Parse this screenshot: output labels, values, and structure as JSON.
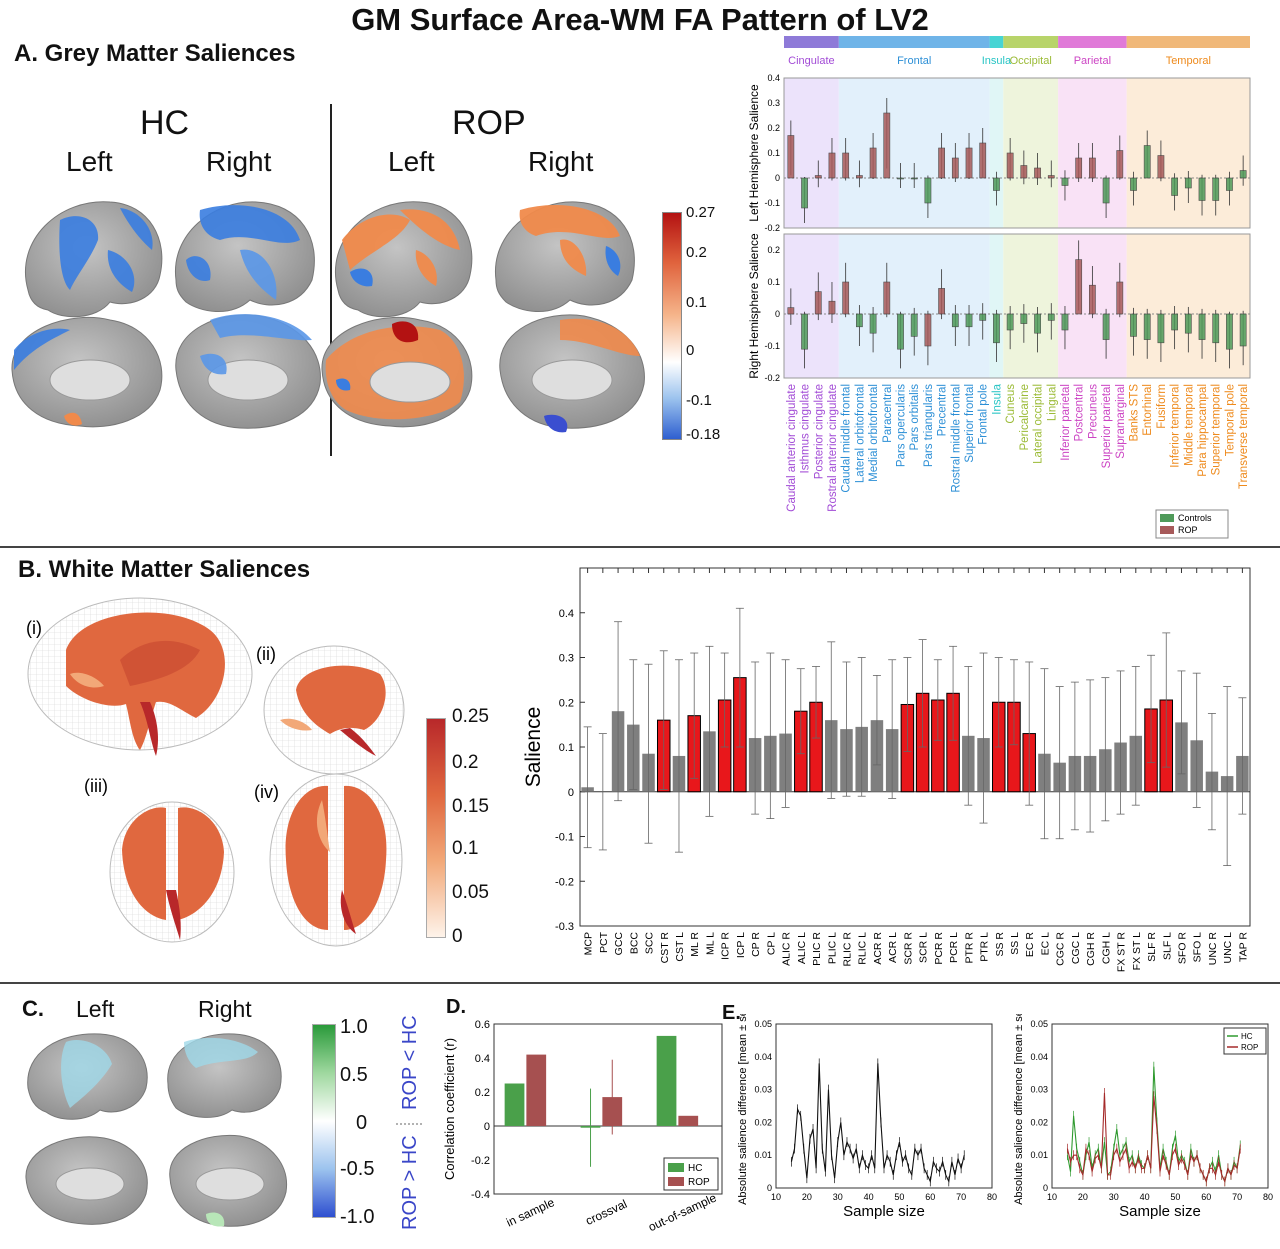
{
  "figure": {
    "title": "GM Surface Area-WM FA Pattern of LV2",
    "section_a": "A. Grey Matter Saliences",
    "section_b": "B. White Matter Saliences",
    "section_c": "C.",
    "section_d": "D.",
    "section_e": "E."
  },
  "panel_a": {
    "groups": [
      "HC",
      "ROP"
    ],
    "hemis": [
      "Left",
      "Right",
      "Left",
      "Right"
    ],
    "colorbar_ticks": [
      "0.27",
      "0.2",
      "0.1",
      "0",
      "-0.1",
      "-0.18"
    ],
    "colors": {
      "negative": "#3a7de0",
      "positive": "#f08a4b",
      "max": "#b31212",
      "cortex": "#a8a8a8"
    }
  },
  "chart_data": [
    {
      "id": "gm_saliences",
      "type": "bar",
      "lobes": [
        {
          "name": "Cingulate",
          "color": "#8e7ad8",
          "bg": "#ece3fb",
          "label_color": "#a24bd6",
          "count": 4
        },
        {
          "name": "Frontal",
          "color": "#6fb4e8",
          "bg": "#e2f0fb",
          "label_color": "#2c8fd6",
          "count": 11
        },
        {
          "name": "Insula",
          "color": "#46d4d4",
          "bg": "#e0f6f6",
          "label_color": "#27c4c4",
          "count": 1
        },
        {
          "name": "Occipital",
          "color": "#b8d46a",
          "bg": "#eef4dc",
          "label_color": "#9bbb36",
          "count": 4
        },
        {
          "name": "Parietal",
          "color": "#e07ad8",
          "bg": "#f9e2f6",
          "label_color": "#cc45c4",
          "count": 5
        },
        {
          "name": "Temporal",
          "color": "#f0b879",
          "bg": "#fcecd9",
          "label_color": "#ee8a1c",
          "count": 9
        }
      ],
      "categories": [
        "Caudal anterior cingulate",
        "Isthmus cingulate",
        "Posterior cingulate",
        "Rostral anterior cingulate",
        "Caudal middle frontal",
        "Lateral orbitofrontal",
        "Medial orbitofrontal",
        "Paracentral",
        "Pars opercularis",
        "Pars orbitalis",
        "Pars triangularis",
        "Precentral",
        "Rostral middle frontal",
        "Superior frontal",
        "Frontal pole",
        "Insula",
        "Cuneus",
        "Pericalcarine",
        "Lateral occipital",
        "Lingual",
        "Inferior parietal",
        "Postcentral",
        "Precuneus",
        "Superior parietal",
        "Supramarginal",
        "Banks STS",
        "Entorhinal",
        "Fusiform",
        "Inferior temporal",
        "Middle temporal",
        "Para hippocampal",
        "Superior temporal",
        "Temporal pole",
        "Transverse temporal"
      ],
      "ylabel_top": "Left Hemisphere Salience",
      "ylabel_bottom": "Right Hemisphere Salience",
      "ylim_top": [
        -0.2,
        0.4
      ],
      "ylim_bottom": [
        -0.2,
        0.25
      ],
      "yticks_top": [
        "0.4",
        "0.3",
        "0.2",
        "0.1",
        "0",
        "-0.1",
        "-0.2"
      ],
      "yticks_bottom": [
        "0.2",
        "0.1",
        "0",
        "-0.1",
        "-0.2"
      ],
      "series_left": [
        0.17,
        -0.12,
        0.01,
        0.1,
        0.1,
        0.01,
        0.12,
        0.26,
        0.0,
        0.0,
        -0.1,
        0.12,
        0.08,
        0.12,
        0.14,
        -0.05,
        0.1,
        0.05,
        0.04,
        0.01,
        -0.03,
        0.08,
        0.08,
        -0.1,
        0.11,
        -0.05,
        0.13,
        0.09,
        -0.07,
        -0.04,
        -0.09,
        -0.09,
        -0.05,
        0.03
      ],
      "series_left_groups": [
        "ROP",
        "Controls",
        "ROP",
        "ROP",
        "ROP",
        "ROP",
        "ROP",
        "ROP",
        "Controls",
        "Controls",
        "Controls",
        "ROP",
        "ROP",
        "ROP",
        "ROP",
        "Controls",
        "ROP",
        "ROP",
        "ROP",
        "ROP",
        "Controls",
        "ROP",
        "ROP",
        "Controls",
        "ROP",
        "Controls",
        "Controls",
        "ROP",
        "Controls",
        "Controls",
        "Controls",
        "Controls",
        "Controls",
        "Controls"
      ],
      "series_right": [
        0.02,
        -0.11,
        0.07,
        0.04,
        0.1,
        -0.04,
        -0.06,
        0.1,
        -0.11,
        -0.07,
        -0.1,
        0.08,
        -0.04,
        -0.04,
        -0.02,
        -0.09,
        -0.05,
        -0.03,
        -0.06,
        -0.02,
        -0.05,
        0.17,
        0.09,
        -0.08,
        0.1,
        -0.07,
        -0.08,
        -0.09,
        -0.05,
        -0.06,
        -0.08,
        -0.09,
        -0.11,
        -0.1
      ],
      "series_right_groups": [
        "ROP",
        "Controls",
        "ROP",
        "ROP",
        "ROP",
        "Controls",
        "Controls",
        "ROP",
        "Controls",
        "Controls",
        "ROP",
        "ROP",
        "Controls",
        "Controls",
        "Controls",
        "Controls",
        "Controls",
        "Controls",
        "Controls",
        "Controls",
        "Controls",
        "ROP",
        "ROP",
        "Controls",
        "ROP",
        "Controls",
        "Controls",
        "Controls",
        "Controls",
        "Controls",
        "Controls",
        "Controls",
        "Controls",
        "Controls"
      ],
      "legend": [
        "Controls",
        "ROP"
      ],
      "legend_colors": [
        "#4f9a5a",
        "#a75a5a"
      ],
      "legend_position": "bottom-right"
    },
    {
      "id": "wm_saliences",
      "type": "bar",
      "categories": [
        "MCP",
        "PCT",
        "GCC",
        "BCC",
        "SCC",
        "CST R",
        "CST L",
        "ML R",
        "ML L",
        "ICP R",
        "ICP L",
        "CP R",
        "CP L",
        "ALIC R",
        "ALIC L",
        "PLIC R",
        "PLIC L",
        "RLIC R",
        "RLIC L",
        "ACR R",
        "ACR L",
        "SCR R",
        "SCR L",
        "PCR R",
        "PCR L",
        "PTR R",
        "PTR L",
        "SS R",
        "SS L",
        "EC R",
        "EC L",
        "CGC R",
        "CGC L",
        "CGH R",
        "CGH L",
        "FX ST R",
        "FX ST L",
        "SLF R",
        "SLF L",
        "SFO R",
        "SFO L",
        "UNC R",
        "UNC L",
        "TAP R"
      ],
      "values": [
        0.01,
        0.0,
        0.18,
        0.15,
        0.085,
        0.16,
        0.08,
        0.17,
        0.135,
        0.205,
        0.255,
        0.12,
        0.125,
        0.13,
        0.18,
        0.2,
        0.16,
        0.14,
        0.145,
        0.16,
        0.14,
        0.195,
        0.22,
        0.205,
        0.22,
        0.125,
        0.12,
        0.2,
        0.2,
        0.13,
        0.085,
        0.065,
        0.08,
        0.08,
        0.095,
        0.11,
        0.125,
        0.185,
        0.205,
        0.155,
        0.115,
        0.045,
        0.035,
        0.08
      ],
      "errors": [
        0.135,
        0.13,
        0.2,
        0.145,
        0.2,
        0.155,
        0.215,
        0.14,
        0.19,
        0.105,
        0.155,
        0.17,
        0.185,
        0.165,
        0.095,
        0.08,
        0.175,
        0.15,
        0.155,
        0.1,
        0.155,
        0.105,
        0.12,
        0.09,
        0.105,
        0.155,
        0.19,
        0.1,
        0.095,
        0.16,
        0.19,
        0.17,
        0.165,
        0.17,
        0.16,
        0.16,
        0.155,
        0.12,
        0.15,
        0.115,
        0.15,
        0.13,
        0.2,
        0.13
      ],
      "significant": [
        false,
        false,
        false,
        false,
        false,
        true,
        false,
        true,
        false,
        true,
        true,
        false,
        false,
        false,
        true,
        true,
        false,
        false,
        false,
        false,
        false,
        true,
        true,
        true,
        true,
        false,
        false,
        true,
        true,
        true,
        false,
        false,
        false,
        false,
        false,
        false,
        false,
        true,
        true,
        false,
        false,
        false,
        false,
        false
      ],
      "colors": {
        "significant": "#e8171b",
        "other": "#7f7f7f"
      },
      "ylabel": "Salience",
      "ylim": [
        -0.3,
        0.5
      ],
      "yticks": [
        "0.4",
        "0.3",
        "0.2",
        "0.1",
        "0",
        "-0.1",
        "-0.2",
        "-0.3"
      ]
    },
    {
      "id": "correlation",
      "type": "bar",
      "categories": [
        "in sample",
        "crossval",
        "out-of-sample"
      ],
      "series": [
        {
          "name": "HC",
          "values": [
            0.25,
            -0.01,
            0.53
          ],
          "errors": [
            0.0,
            0.23,
            0.0
          ],
          "color": "#4aa04a"
        },
        {
          "name": "ROP",
          "values": [
            0.42,
            0.17,
            0.06
          ],
          "errors": [
            0.0,
            0.22,
            0.0
          ],
          "color": "#a65050"
        }
      ],
      "ylabel": "Correlation coefficient (r)",
      "ylim": [
        -0.4,
        0.6
      ],
      "yticks": [
        "0.6",
        "0.4",
        "0.2",
        "0",
        "-0.2",
        "-0.4"
      ],
      "legend_position": "bottom-right"
    },
    {
      "id": "salience_diff_all",
      "type": "line",
      "x": [
        15,
        16,
        17,
        18,
        19,
        20,
        21,
        22,
        23,
        24,
        25,
        26,
        27,
        28,
        29,
        30,
        31,
        32,
        33,
        34,
        35,
        36,
        37,
        38,
        39,
        40,
        41,
        42,
        43,
        44,
        45,
        46,
        47,
        48,
        49,
        50,
        51,
        52,
        53,
        54,
        55,
        56,
        57,
        58,
        59,
        60,
        61,
        62,
        63,
        64,
        65,
        66,
        67,
        68,
        69,
        70,
        71
      ],
      "values": [
        0.008,
        0.012,
        0.024,
        0.022,
        0.012,
        0.003,
        0.015,
        0.018,
        0.006,
        0.038,
        0.012,
        0.005,
        0.03,
        0.01,
        0.003,
        0.014,
        0.02,
        0.01,
        0.014,
        0.012,
        0.009,
        0.012,
        0.006,
        0.01,
        0.007,
        0.006,
        0.01,
        0.006,
        0.038,
        0.02,
        0.006,
        0.01,
        0.008,
        0.004,
        0.01,
        0.014,
        0.008,
        0.01,
        0.006,
        0.004,
        0.012,
        0.01,
        0.012,
        0.006,
        0.004,
        0.002,
        0.008,
        0.006,
        0.005,
        0.008,
        0.004,
        0.002,
        0.008,
        0.004,
        0.009,
        0.006,
        0.01
      ],
      "xlabel": "Sample size",
      "ylabel": "Absolute salience difference [mean ± se]",
      "xlim": [
        10,
        80
      ],
      "ylim": [
        0,
        0.05
      ],
      "xticks": [
        "10",
        "20",
        "30",
        "40",
        "50",
        "60",
        "70",
        "80"
      ],
      "yticks": [
        "0.05",
        "0.04",
        "0.03",
        "0.02",
        "0.01",
        "0"
      ]
    },
    {
      "id": "salience_diff_groups",
      "type": "line",
      "x": [
        15,
        16,
        17,
        18,
        19,
        20,
        21,
        22,
        23,
        24,
        25,
        26,
        27,
        28,
        29,
        30,
        31,
        32,
        33,
        34,
        35,
        36,
        37,
        38,
        39,
        40,
        41,
        42,
        43,
        44,
        45,
        46,
        47,
        48,
        49,
        50,
        51,
        52,
        53,
        54,
        55,
        56,
        57,
        58,
        59,
        60,
        61,
        62,
        63,
        64,
        65,
        66,
        67,
        68,
        69,
        70,
        71
      ],
      "series": [
        {
          "name": "HC",
          "color": "#2f9a2f",
          "values": [
            0.01,
            0.005,
            0.022,
            0.012,
            0.008,
            0.004,
            0.01,
            0.014,
            0.006,
            0.01,
            0.012,
            0.006,
            0.014,
            0.004,
            0.005,
            0.012,
            0.018,
            0.01,
            0.012,
            0.014,
            0.008,
            0.01,
            0.006,
            0.01,
            0.007,
            0.006,
            0.01,
            0.006,
            0.037,
            0.02,
            0.006,
            0.012,
            0.008,
            0.004,
            0.012,
            0.016,
            0.008,
            0.01,
            0.008,
            0.004,
            0.012,
            0.008,
            0.01,
            0.006,
            0.004,
            0.002,
            0.006,
            0.008,
            0.005,
            0.01,
            0.004,
            0.002,
            0.006,
            0.004,
            0.008,
            0.006,
            0.013
          ]
        },
        {
          "name": "ROP",
          "color": "#a52a2a",
          "values": [
            0.012,
            0.008,
            0.01,
            0.01,
            0.006,
            0.004,
            0.012,
            0.01,
            0.005,
            0.009,
            0.01,
            0.006,
            0.029,
            0.004,
            0.004,
            0.01,
            0.012,
            0.008,
            0.01,
            0.012,
            0.006,
            0.008,
            0.006,
            0.009,
            0.006,
            0.006,
            0.01,
            0.006,
            0.028,
            0.018,
            0.005,
            0.01,
            0.007,
            0.004,
            0.01,
            0.012,
            0.007,
            0.009,
            0.007,
            0.004,
            0.01,
            0.008,
            0.01,
            0.006,
            0.004,
            0.002,
            0.006,
            0.006,
            0.004,
            0.008,
            0.004,
            0.002,
            0.006,
            0.004,
            0.007,
            0.006,
            0.012
          ]
        }
      ],
      "xlabel": "Sample size",
      "ylabel": "Absolute salience difference [mean ± se]",
      "xlim": [
        10,
        80
      ],
      "ylim": [
        0,
        0.05
      ],
      "xticks": [
        "10",
        "20",
        "30",
        "40",
        "50",
        "60",
        "70",
        "80"
      ],
      "yticks": [
        "0.05",
        "0.04",
        "0.03",
        "0.02",
        "0.01",
        "0"
      ],
      "legend_position": "top-right"
    }
  ],
  "panel_b": {
    "views": [
      "(i)",
      "(ii)",
      "(iii)",
      "(iv)"
    ],
    "colorbar_ticks": [
      "0.25",
      "0.2",
      "0.15",
      "0.1",
      "0.05",
      "0"
    ],
    "colors": {
      "tract": "#e0683f",
      "tract_dark": "#b8282a",
      "mesh": "#d0d0d0"
    }
  },
  "panel_c": {
    "hemis": [
      "Left",
      "Right"
    ],
    "colorbar_ticks": [
      "1.0",
      "0.5",
      "0",
      "-0.5",
      "-1.0"
    ],
    "label_top": "ROP < HC",
    "label_bottom": "ROP > HC",
    "label_colors": {
      "rop": "#3a46c8",
      "hc": "#2a9a2a"
    }
  }
}
